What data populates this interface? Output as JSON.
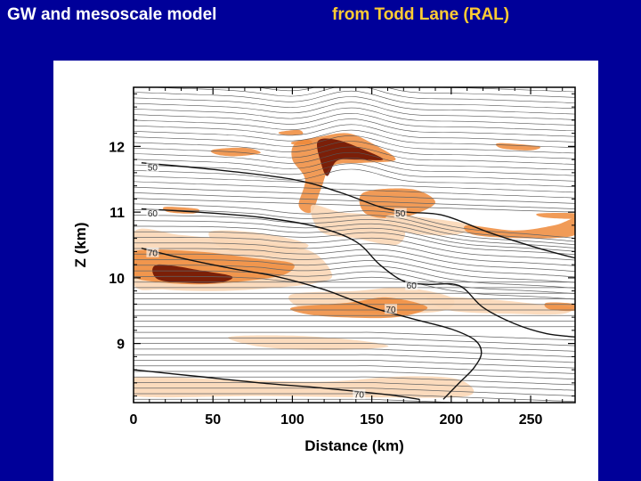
{
  "header": {
    "title": "GW and mesoscale model",
    "credit": "from Todd Lane (RAL)"
  },
  "colors": {
    "background": "#000099",
    "title": "#ffffff",
    "credit": "#ffcc33",
    "shade_light": "#fbd7b6",
    "shade_mid": "#ef8a3a",
    "shade_dark": "#6e1200"
  },
  "chart_data": {
    "type": "contour",
    "xlabel": "Distance (km)",
    "ylabel": "Z (km)",
    "xlim": [
      0,
      278
    ],
    "ylim": [
      8.1,
      12.9
    ],
    "x_ticks": [
      0,
      50,
      100,
      150,
      200,
      250
    ],
    "y_ticks": [
      9,
      10,
      11,
      12
    ],
    "speed_contours": [
      {
        "label": "50",
        "points": [
          [
            5,
            11.75
          ],
          [
            50,
            11.65
          ],
          [
            100,
            11.5
          ],
          [
            130,
            11.3
          ],
          [
            155,
            11.08
          ],
          [
            172,
            11.0
          ],
          [
            195,
            10.95
          ],
          [
            225,
            10.68
          ],
          [
            255,
            10.45
          ],
          [
            278,
            10.3
          ]
        ]
      },
      {
        "label": "60",
        "points": [
          [
            5,
            11.05
          ],
          [
            40,
            11.0
          ],
          [
            80,
            10.92
          ],
          [
            115,
            10.78
          ],
          [
            140,
            10.55
          ],
          [
            155,
            10.2
          ],
          [
            170,
            9.95
          ],
          [
            185,
            9.9
          ],
          [
            205,
            9.88
          ],
          [
            220,
            9.55
          ],
          [
            240,
            9.3
          ],
          [
            260,
            9.15
          ],
          [
            278,
            9.1
          ]
        ]
      },
      {
        "label": "70",
        "points": [
          [
            5,
            10.45
          ],
          [
            30,
            10.3
          ],
          [
            60,
            10.15
          ],
          [
            90,
            10.02
          ],
          [
            120,
            9.82
          ],
          [
            150,
            9.55
          ],
          [
            175,
            9.38
          ],
          [
            200,
            9.22
          ],
          [
            215,
            9.05
          ],
          [
            219,
            8.85
          ],
          [
            214,
            8.62
          ],
          [
            205,
            8.4
          ],
          [
            195,
            8.15
          ]
        ]
      },
      {
        "label": "70",
        "points": [
          [
            0,
            8.6
          ],
          [
            40,
            8.5
          ],
          [
            80,
            8.4
          ],
          [
            120,
            8.32
          ],
          [
            160,
            8.22
          ],
          [
            180,
            8.15
          ]
        ]
      }
    ],
    "contour_labels": [
      {
        "text": "50",
        "x": 12,
        "y": 11.68
      },
      {
        "text": "60",
        "x": 12,
        "y": 10.98
      },
      {
        "text": "70",
        "x": 12,
        "y": 10.38
      },
      {
        "text": "50",
        "x": 168,
        "y": 10.98
      },
      {
        "text": "60",
        "x": 175,
        "y": 9.88
      },
      {
        "text": "70",
        "x": 162,
        "y": 9.52
      },
      {
        "text": "70",
        "x": 142,
        "y": 8.22
      }
    ],
    "shaded_regions": [
      {
        "level": "light",
        "points": [
          [
            0,
            10.7
          ],
          [
            30,
            10.65
          ],
          [
            70,
            10.55
          ],
          [
            110,
            10.42
          ],
          [
            125,
            10.05
          ],
          [
            115,
            9.92
          ],
          [
            90,
            9.85
          ],
          [
            55,
            9.8
          ],
          [
            20,
            9.82
          ],
          [
            0,
            9.9
          ]
        ]
      },
      {
        "level": "mid",
        "points": [
          [
            0,
            10.4
          ],
          [
            40,
            10.4
          ],
          [
            75,
            10.3
          ],
          [
            100,
            10.22
          ],
          [
            95,
            10.05
          ],
          [
            70,
            9.95
          ],
          [
            40,
            9.9
          ],
          [
            10,
            9.95
          ],
          [
            0,
            10.05
          ]
        ]
      },
      {
        "level": "dark",
        "points": [
          [
            15,
            10.2
          ],
          [
            45,
            10.1
          ],
          [
            62,
            10.02
          ],
          [
            55,
            9.93
          ],
          [
            35,
            9.92
          ],
          [
            15,
            9.98
          ]
        ]
      },
      {
        "level": "light",
        "points": [
          [
            48,
            10.7
          ],
          [
            80,
            10.68
          ],
          [
            110,
            10.5
          ],
          [
            90,
            10.35
          ],
          [
            60,
            10.4
          ]
        ]
      },
      {
        "level": "mid",
        "points": [
          [
            102,
            12.05
          ],
          [
            118,
            12.15
          ],
          [
            135,
            12.2
          ],
          [
            150,
            12.05
          ],
          [
            165,
            11.8
          ],
          [
            145,
            11.75
          ],
          [
            125,
            11.7
          ],
          [
            118,
            11.35
          ],
          [
            112,
            11.0
          ],
          [
            104,
            11.1
          ],
          [
            108,
            11.5
          ],
          [
            100,
            11.8
          ]
        ]
      },
      {
        "level": "dark",
        "points": [
          [
            116,
            12.08
          ],
          [
            128,
            12.1
          ],
          [
            145,
            11.95
          ],
          [
            157,
            11.8
          ],
          [
            140,
            11.8
          ],
          [
            128,
            11.78
          ],
          [
            122,
            11.55
          ],
          [
            118,
            11.75
          ]
        ]
      },
      {
        "level": "light",
        "points": [
          [
            112,
            11.1
          ],
          [
            118,
            10.7
          ],
          [
            140,
            10.6
          ],
          [
            165,
            10.5
          ],
          [
            170,
            10.75
          ],
          [
            150,
            10.95
          ],
          [
            130,
            11.0
          ]
        ]
      },
      {
        "level": "mid",
        "points": [
          [
            145,
            11.3
          ],
          [
            175,
            11.35
          ],
          [
            190,
            11.15
          ],
          [
            175,
            10.95
          ],
          [
            160,
            10.9
          ],
          [
            145,
            11.0
          ]
        ]
      },
      {
        "level": "light",
        "points": [
          [
            160,
            10.95
          ],
          [
            195,
            10.88
          ],
          [
            215,
            10.78
          ],
          [
            200,
            10.65
          ],
          [
            170,
            10.7
          ]
        ]
      },
      {
        "level": "mid",
        "points": [
          [
            210,
            10.8
          ],
          [
            240,
            10.72
          ],
          [
            265,
            10.8
          ],
          [
            278,
            10.9
          ],
          [
            278,
            10.65
          ],
          [
            250,
            10.6
          ],
          [
            215,
            10.65
          ]
        ]
      },
      {
        "level": "light",
        "points": [
          [
            100,
            9.75
          ],
          [
            140,
            9.8
          ],
          [
            170,
            9.85
          ],
          [
            200,
            9.7
          ],
          [
            195,
            9.5
          ],
          [
            160,
            9.45
          ],
          [
            130,
            9.5
          ],
          [
            105,
            9.55
          ]
        ]
      },
      {
        "level": "mid",
        "points": [
          [
            100,
            9.55
          ],
          [
            135,
            9.62
          ],
          [
            160,
            9.7
          ],
          [
            185,
            9.55
          ],
          [
            165,
            9.4
          ],
          [
            130,
            9.4
          ],
          [
            108,
            9.45
          ]
        ]
      },
      {
        "level": "light",
        "points": [
          [
            185,
            9.7
          ],
          [
            220,
            9.68
          ],
          [
            255,
            9.6
          ],
          [
            275,
            9.55
          ],
          [
            270,
            9.45
          ],
          [
            240,
            9.45
          ],
          [
            200,
            9.5
          ]
        ]
      },
      {
        "level": "light",
        "points": [
          [
            60,
            9.1
          ],
          [
            100,
            9.12
          ],
          [
            140,
            9.05
          ],
          [
            160,
            8.95
          ],
          [
            120,
            8.9
          ],
          [
            80,
            8.95
          ]
        ]
      },
      {
        "level": "light",
        "points": [
          [
            0,
            8.48
          ],
          [
            60,
            8.45
          ],
          [
            120,
            8.42
          ],
          [
            170,
            8.5
          ],
          [
            205,
            8.45
          ],
          [
            210,
            8.2
          ],
          [
            150,
            8.18
          ],
          [
            80,
            8.2
          ],
          [
            0,
            8.2
          ]
        ]
      },
      {
        "level": "mid",
        "points": [
          [
            50,
            11.95
          ],
          [
            70,
            11.98
          ],
          [
            80,
            11.9
          ],
          [
            65,
            11.85
          ],
          [
            52,
            11.88
          ]
        ]
      },
      {
        "level": "mid",
        "points": [
          [
            20,
            11.08
          ],
          [
            40,
            11.05
          ],
          [
            38,
            10.98
          ],
          [
            22,
            11.0
          ]
        ]
      },
      {
        "level": "mid",
        "points": [
          [
            100,
            12.07
          ],
          [
            110,
            12.1
          ],
          [
            112,
            12.04
          ],
          [
            101,
            12.03
          ]
        ]
      },
      {
        "level": "mid",
        "points": [
          [
            230,
            12.05
          ],
          [
            255,
            12.0
          ],
          [
            250,
            11.94
          ],
          [
            232,
            11.97
          ]
        ]
      },
      {
        "level": "mid",
        "points": [
          [
            255,
            10.98
          ],
          [
            278,
            10.98
          ],
          [
            278,
            10.9
          ],
          [
            258,
            10.92
          ]
        ]
      },
      {
        "level": "mid",
        "points": [
          [
            92,
            12.22
          ],
          [
            104,
            12.25
          ],
          [
            106,
            12.18
          ],
          [
            94,
            12.18
          ]
        ]
      },
      {
        "level": "mid",
        "points": [
          [
            260,
            9.62
          ],
          [
            278,
            9.6
          ],
          [
            278,
            9.5
          ],
          [
            262,
            9.52
          ]
        ]
      }
    ]
  }
}
